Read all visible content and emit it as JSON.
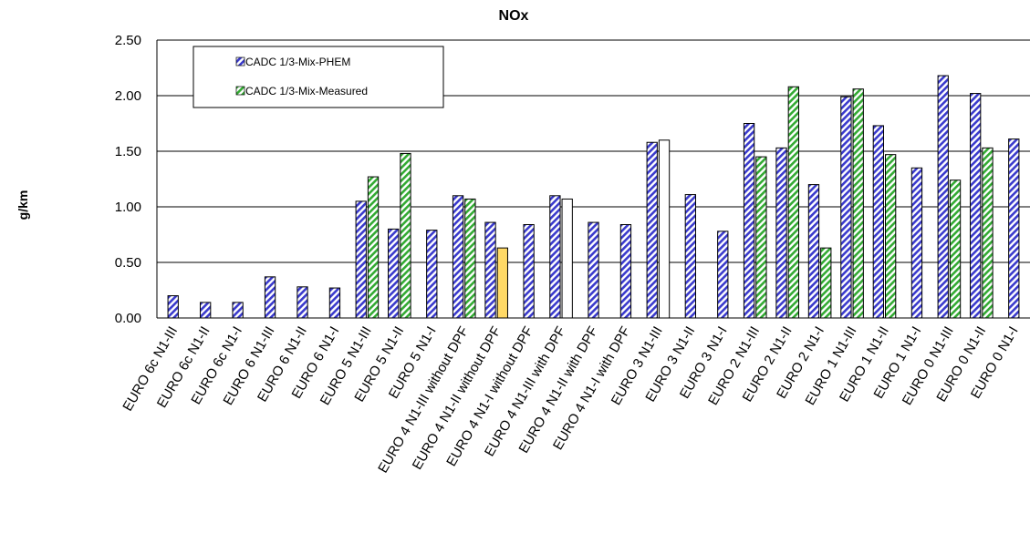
{
  "chart_data": {
    "type": "bar",
    "title": "NOx",
    "xlabel": "",
    "ylabel": "g/km",
    "ylim": [
      0,
      2.5
    ],
    "yticks": [
      "0.00",
      "0.50",
      "1.00",
      "1.50",
      "2.00",
      "2.50"
    ],
    "grid": true,
    "legend_position": "top-left",
    "categories": [
      "EURO 6c N1-III",
      "EURO 6c N1-II",
      "EURO 6c N1-I",
      "EURO 6 N1-III",
      "EURO 6 N1-II",
      "EURO 6 N1-I",
      "EURO 5 N1-III",
      "EURO 5 N1-II",
      "EURO 5 N1-I",
      "EURO 4 N1-III without DPF",
      "EURO 4 N1-II without DPF",
      "EURO 4 N1-I without DPF",
      "EURO 4 N1-III with DPF",
      "EURO 4 N1-II with DPF",
      "EURO 4 N1-I with DPF",
      "EURO 3 N1-III",
      "EURO 3 N1-II",
      "EURO 3 N1-I",
      "EURO 2 N1-III",
      "EURO 2 N1-II",
      "EURO 2 N1-I",
      "EURO 1 N1-III",
      "EURO 1 N1-II",
      "EURO 1 N1-I",
      "EURO 0 N1-III",
      "EURO 0 N1-II",
      "EURO 0 N1-I"
    ],
    "series": [
      {
        "name": "CADC 1/3-Mix-PHEM",
        "values": [
          0.2,
          0.14,
          0.14,
          0.37,
          0.28,
          0.27,
          1.05,
          0.8,
          0.79,
          1.1,
          0.86,
          0.84,
          1.1,
          0.86,
          0.84,
          1.58,
          1.11,
          0.78,
          1.75,
          1.53,
          1.2,
          1.99,
          1.73,
          1.35,
          2.18,
          2.02,
          1.61
        ]
      },
      {
        "name": "CADC 1/3-Mix-Measured",
        "values": [
          null,
          null,
          null,
          null,
          null,
          null,
          1.27,
          1.48,
          null,
          1.07,
          0.63,
          null,
          1.07,
          null,
          null,
          1.6,
          null,
          null,
          1.45,
          2.08,
          0.63,
          2.06,
          1.47,
          null,
          1.24,
          1.53,
          null
        ]
      }
    ],
    "highlighted_measured_bars": [
      {
        "category_index": 10,
        "fill": "#ffd966"
      },
      {
        "category_index": 12,
        "fill": "#ffffff"
      },
      {
        "category_index": 15,
        "fill": "#ffffff"
      }
    ],
    "colors": {
      "phem_stripe": "#3a3acc",
      "measured_stripe": "#33aa33",
      "bar_outline": "#000000",
      "gridline": "#000000"
    }
  }
}
